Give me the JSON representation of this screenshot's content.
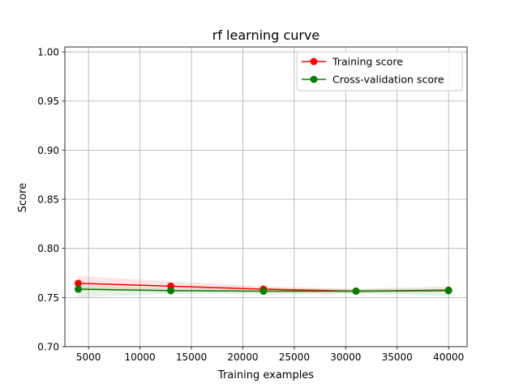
{
  "chart_data": {
    "type": "line",
    "title": "rf learning curve",
    "xlabel": "Training examples",
    "ylabel": "Score",
    "xlim": [
      2700,
      41800
    ],
    "ylim": [
      0.7,
      1.005
    ],
    "xticks": [
      5000,
      10000,
      15000,
      20000,
      25000,
      30000,
      35000,
      40000
    ],
    "yticks": [
      0.7,
      0.75,
      0.8,
      0.85,
      0.9,
      0.95,
      1.0
    ],
    "ytick_labels": [
      "0.70",
      "0.75",
      "0.80",
      "0.85",
      "0.90",
      "0.95",
      "1.00"
    ],
    "grid": true,
    "legend_position": "top-right",
    "x": [
      4000,
      13000,
      22000,
      31000,
      40000
    ],
    "series": [
      {
        "name": "Training score",
        "color": "#ff0000",
        "band_color": "#ff0000",
        "values": [
          0.7645,
          0.7615,
          0.7585,
          0.7565,
          0.7575
        ],
        "upper": [
          0.772,
          0.7665,
          0.7615,
          0.7585,
          0.759
        ],
        "lower": [
          0.757,
          0.7565,
          0.7555,
          0.7545,
          0.756
        ]
      },
      {
        "name": "Cross-validation score",
        "color": "#008000",
        "band_color": "#008000",
        "values": [
          0.7585,
          0.757,
          0.7565,
          0.7565,
          0.757
        ],
        "upper": [
          0.762,
          0.7595,
          0.7595,
          0.759,
          0.7615
        ],
        "lower": [
          0.75,
          0.754,
          0.7535,
          0.754,
          0.7515
        ]
      }
    ]
  }
}
